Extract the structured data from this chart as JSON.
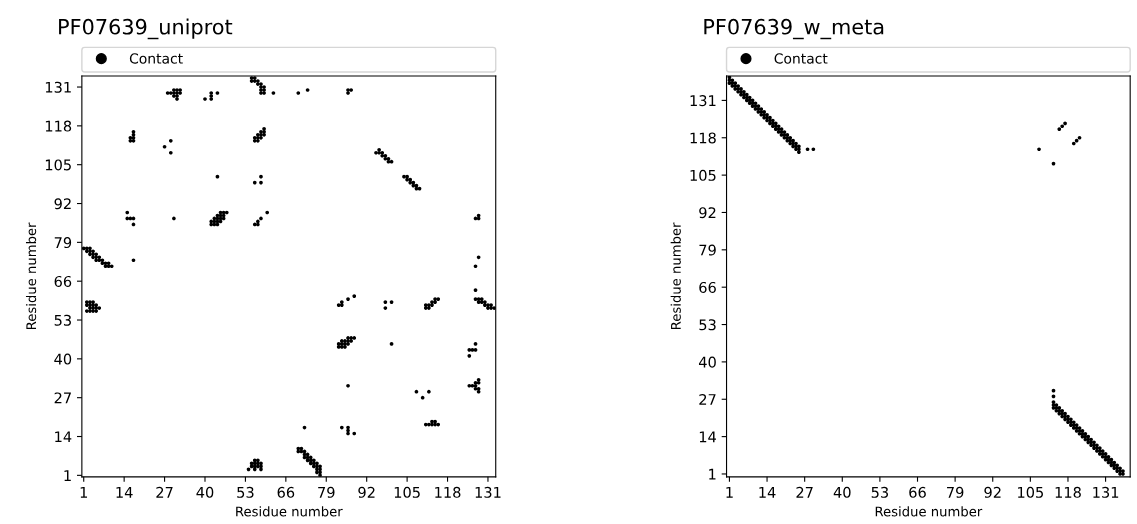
{
  "chart_data": [
    {
      "type": "scatter",
      "title": "PF07639_uniprot",
      "xlabel": "Residue number",
      "ylabel": "Residue number",
      "xlim": [
        0.4,
        133.5
      ],
      "ylim": [
        0.5,
        134.7
      ],
      "xticks": [
        1,
        14,
        27,
        40,
        53,
        66,
        79,
        92,
        105,
        118,
        131
      ],
      "yticks": [
        1,
        14,
        27,
        40,
        53,
        66,
        79,
        92,
        105,
        118,
        131
      ],
      "legend": "top",
      "marker": "circle",
      "grid": false,
      "series": [
        {
          "name": "Contact",
          "color": "#000000",
          "x": [
            1,
            2,
            3,
            2,
            3,
            4,
            3,
            4,
            5,
            4,
            5,
            6,
            5,
            6,
            7,
            7,
            8,
            9,
            8,
            9,
            10,
            17,
            15,
            15,
            16,
            17,
            17,
            30,
            42,
            43,
            44,
            42,
            43,
            44,
            45,
            43,
            44,
            45,
            46,
            44,
            45,
            46,
            45,
            46,
            47,
            56,
            57,
            57,
            58,
            60,
            44,
            56,
            58,
            58,
            16,
            17,
            16,
            17,
            17,
            17,
            27,
            29,
            29,
            56,
            57,
            56,
            57,
            58,
            57,
            58,
            59,
            58,
            59,
            59,
            28,
            29,
            30,
            31,
            30,
            31,
            32,
            30,
            31,
            31,
            32,
            40,
            42,
            42,
            42,
            44,
            55,
            56,
            55,
            56,
            57,
            57,
            58,
            58,
            59,
            58,
            59,
            58,
            59,
            62,
            70,
            73,
            86,
            86,
            87,
            95,
            96,
            96,
            97,
            97,
            98,
            98,
            99,
            99,
            100,
            104,
            105,
            105,
            106,
            106,
            107,
            107,
            108,
            108,
            109,
            127,
            128,
            128,
            128,
            127,
            127,
            127,
            128,
            129,
            128,
            129,
            130,
            130,
            131,
            132,
            131,
            132,
            133,
            83,
            84,
            84,
            86,
            88,
            98,
            98,
            100,
            111,
            112,
            111,
            112,
            113,
            113,
            114,
            114,
            115,
            83,
            84,
            85,
            83,
            84,
            85,
            86,
            84,
            85,
            86,
            87,
            86,
            87,
            88,
            100,
            125,
            125,
            126,
            127,
            127,
            86,
            108,
            110,
            112,
            125,
            126,
            127,
            127,
            128,
            128,
            127,
            128,
            128,
            111,
            112,
            113,
            114,
            115,
            113,
            114,
            72,
            84,
            86,
            86,
            86,
            88,
            70,
            71,
            70,
            71,
            72,
            72,
            73,
            72,
            73,
            74,
            73,
            74,
            75,
            74,
            75,
            76,
            75,
            76,
            77,
            76,
            77,
            76,
            77,
            77,
            2,
            3,
            4,
            2,
            3,
            4,
            5,
            3,
            4,
            5,
            6,
            2,
            3,
            4,
            5,
            56,
            57,
            55,
            56,
            57,
            58,
            55,
            56,
            57,
            58,
            54,
            56,
            58
          ],
          "values": [
            77,
            77,
            77,
            76,
            76,
            76,
            75,
            75,
            75,
            74,
            74,
            74,
            73,
            73,
            73,
            72,
            72,
            72,
            71,
            71,
            71,
            73,
            89,
            87,
            87,
            87,
            85,
            87,
            85,
            85,
            85,
            86,
            86,
            86,
            86,
            87,
            87,
            87,
            87,
            88,
            88,
            88,
            89,
            89,
            89,
            85,
            85,
            86,
            87,
            89,
            101,
            99,
            99,
            101,
            113,
            113,
            114,
            114,
            115,
            116,
            111,
            113,
            109,
            113,
            113,
            114,
            114,
            114,
            115,
            115,
            115,
            116,
            116,
            117,
            129,
            129,
            129,
            129,
            130,
            130,
            130,
            128,
            128,
            127,
            129,
            127,
            127,
            128,
            129,
            129,
            134,
            134,
            133,
            133,
            133,
            132,
            132,
            131,
            131,
            130,
            130,
            129,
            129,
            129,
            129,
            130,
            129,
            130,
            130,
            109,
            110,
            109,
            109,
            108,
            108,
            107,
            107,
            106,
            106,
            101,
            101,
            100,
            100,
            99,
            99,
            98,
            98,
            97,
            97,
            87,
            87,
            88,
            74,
            71,
            63,
            60,
            60,
            60,
            59,
            59,
            59,
            58,
            58,
            58,
            57,
            57,
            57,
            58,
            58,
            59,
            60,
            61,
            59,
            57,
            59,
            57,
            57,
            58,
            58,
            58,
            59,
            59,
            60,
            60,
            44,
            44,
            44,
            45,
            45,
            45,
            45,
            46,
            46,
            46,
            46,
            47,
            47,
            47,
            45,
            41,
            43,
            43,
            43,
            45,
            31,
            29,
            27,
            29,
            31,
            31,
            31,
            32,
            32,
            33,
            30,
            30,
            29,
            18,
            18,
            18,
            18,
            18,
            19,
            19,
            17,
            17,
            17,
            16,
            15,
            15,
            10,
            10,
            9,
            9,
            9,
            8,
            8,
            7,
            7,
            7,
            6,
            6,
            6,
            5,
            5,
            5,
            4,
            4,
            4,
            3,
            3,
            2,
            2,
            1,
            59,
            59,
            59,
            58,
            58,
            58,
            58,
            57,
            57,
            57,
            57,
            56,
            56,
            56,
            56,
            6,
            6,
            5,
            5,
            5,
            5,
            4,
            4,
            4,
            4,
            3,
            3,
            3
          ]
        }
      ]
    },
    {
      "type": "scatter",
      "title": "PF07639_w_meta",
      "xlabel": "Residue number",
      "ylabel": "Residue number",
      "xlim": [
        0,
        139.5
      ],
      "ylim": [
        0,
        139.5
      ],
      "xticks": [
        1,
        14,
        27,
        40,
        53,
        66,
        79,
        92,
        105,
        118,
        131
      ],
      "yticks": [
        1,
        14,
        27,
        40,
        53,
        66,
        79,
        92,
        105,
        118,
        131
      ],
      "legend": "top",
      "marker": "circle",
      "grid": false,
      "series": [
        {
          "name": "Contact",
          "color": "#000000",
          "x": [
            1,
            1,
            1,
            2,
            2,
            2,
            3,
            3,
            3,
            4,
            4,
            4,
            5,
            5,
            5,
            6,
            6,
            6,
            7,
            7,
            7,
            8,
            8,
            8,
            9,
            9,
            9,
            10,
            10,
            10,
            11,
            11,
            11,
            12,
            12,
            12,
            13,
            13,
            13,
            14,
            14,
            14,
            15,
            15,
            15,
            16,
            16,
            16,
            17,
            17,
            17,
            18,
            18,
            18,
            19,
            19,
            19,
            20,
            20,
            20,
            21,
            21,
            21,
            22,
            22,
            22,
            23,
            23,
            23,
            24,
            24,
            24,
            25,
            25,
            25,
            28,
            30,
            108,
            113,
            115,
            116,
            117,
            120,
            121,
            122,
            113,
            113,
            113,
            113,
            113,
            114,
            114,
            114,
            115,
            115,
            115,
            116,
            116,
            116,
            117,
            117,
            117,
            118,
            118,
            118,
            119,
            119,
            119,
            120,
            120,
            120,
            121,
            121,
            121,
            122,
            122,
            122,
            123,
            123,
            123,
            124,
            124,
            124,
            125,
            125,
            125,
            126,
            126,
            126,
            127,
            127,
            127,
            128,
            128,
            128,
            129,
            129,
            129,
            130,
            130,
            130,
            131,
            131,
            131,
            132,
            132,
            132,
            133,
            133,
            133,
            134,
            134,
            134,
            135,
            135,
            135,
            136,
            136,
            136,
            137,
            137
          ],
          "values": [
            139,
            138,
            137,
            138,
            137,
            136,
            137,
            136,
            135,
            136,
            135,
            134,
            135,
            134,
            133,
            134,
            133,
            132,
            133,
            132,
            131,
            132,
            131,
            130,
            131,
            130,
            129,
            130,
            129,
            128,
            129,
            128,
            127,
            128,
            127,
            126,
            127,
            126,
            125,
            126,
            125,
            124,
            125,
            124,
            123,
            124,
            123,
            122,
            123,
            122,
            121,
            122,
            121,
            120,
            121,
            120,
            119,
            120,
            119,
            118,
            119,
            118,
            117,
            118,
            117,
            116,
            117,
            116,
            115,
            116,
            115,
            114,
            115,
            114,
            113,
            114,
            114,
            114,
            109,
            121,
            122,
            123,
            116,
            117,
            118,
            30,
            28,
            26,
            25,
            24,
            25,
            24,
            23,
            24,
            23,
            22,
            23,
            22,
            21,
            22,
            21,
            20,
            21,
            20,
            19,
            20,
            19,
            18,
            19,
            18,
            17,
            18,
            17,
            16,
            17,
            16,
            15,
            16,
            15,
            14,
            15,
            14,
            13,
            14,
            13,
            12,
            13,
            12,
            11,
            12,
            11,
            10,
            11,
            10,
            9,
            10,
            9,
            8,
            9,
            8,
            7,
            8,
            7,
            6,
            7,
            6,
            5,
            6,
            5,
            4,
            5,
            4,
            3,
            4,
            3,
            2,
            3,
            2,
            1,
            2,
            1
          ]
        }
      ]
    }
  ]
}
